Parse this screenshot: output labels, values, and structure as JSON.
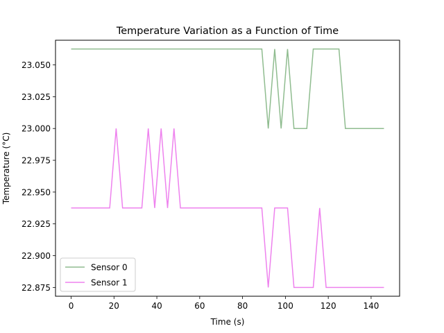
{
  "chart_data": {
    "type": "line",
    "title": "Temperature Variation as a Function of Time",
    "xlabel": "Time (s)",
    "ylabel": "Temperature (°C)",
    "xlim": [
      -7.3,
      153.3
    ],
    "ylim": [
      22.8681,
      23.0694
    ],
    "xticks": [
      0,
      20,
      40,
      60,
      80,
      100,
      120,
      140
    ],
    "yticks": [
      22.875,
      22.9,
      22.925,
      22.95,
      22.975,
      23.0,
      23.025,
      23.05
    ],
    "ytick_decimals": 3,
    "grid": false,
    "legend_position": "lower-left",
    "series": [
      {
        "name": "Sensor 0",
        "color": "#8fbc8f",
        "x": [
          0,
          89,
          92,
          95,
          98,
          101,
          104,
          110,
          113,
          125,
          128,
          146
        ],
        "y": [
          23.0625,
          23.0625,
          23.0,
          23.0625,
          23.0,
          23.0625,
          23.0,
          23.0,
          23.0625,
          23.0625,
          23.0,
          23.0
        ]
      },
      {
        "name": "Sensor 1",
        "color": "#ee82ee",
        "x": [
          0,
          18,
          21,
          24,
          33,
          36,
          39,
          42,
          45,
          48,
          51,
          89,
          92,
          95,
          101,
          104,
          113,
          116,
          119,
          146
        ],
        "y": [
          22.9375,
          22.9375,
          23.0,
          22.9375,
          22.9375,
          23.0,
          22.9375,
          23.0,
          22.9375,
          23.0,
          22.9375,
          22.9375,
          22.875,
          22.9375,
          22.9375,
          22.875,
          22.875,
          22.9375,
          22.875,
          22.875
        ]
      }
    ]
  }
}
